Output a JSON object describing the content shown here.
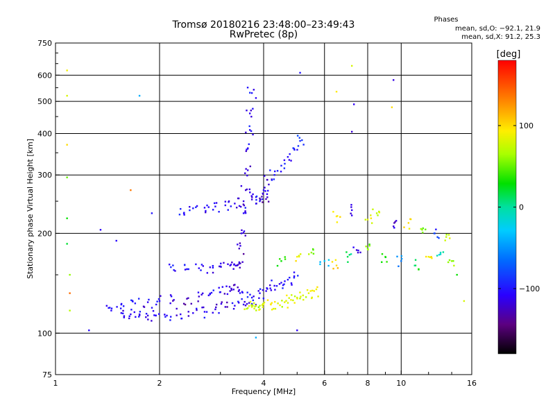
{
  "chart_data": {
    "type": "scatter",
    "title": "Tromsø 20180216 23:48:00–23:49:43",
    "subtitle": "RwPretec (8p)",
    "xlabel": "Frequency [MHz]",
    "ylabel": "Stationary phase Virtual Height [km]",
    "x_scale": "log",
    "y_scale": "log",
    "xlim": [
      1,
      16
    ],
    "ylim": [
      75,
      750
    ],
    "x_ticks": [
      1,
      2,
      4,
      6,
      8,
      10,
      16
    ],
    "y_ticks": [
      75,
      100,
      200,
      300,
      400,
      500,
      600,
      750
    ],
    "x_grid": [
      2,
      4,
      6,
      8,
      10
    ],
    "y_grid": [
      100,
      200,
      300,
      400,
      500,
      600
    ],
    "grid": true,
    "legend": {
      "heading": "Phases",
      "line1": "mean, sd,O:  −92.1, 21.9",
      "line2": "mean, sd,X:  91.2, 25.3",
      "placement": "top-right"
    },
    "colorbar": {
      "label": "[deg]",
      "range": [
        -180,
        180
      ],
      "ticks": [
        {
          "value": 100,
          "label": "100"
        },
        {
          "value": 0,
          "label": "0"
        },
        {
          "value": -100,
          "label": "−100"
        }
      ]
    },
    "point_color": "phase_deg",
    "series": [
      {
        "x": [
          1.45,
          1.55,
          1.65,
          1.75,
          1.85,
          1.95,
          2.1,
          2.3,
          2.5,
          2.7,
          2.9,
          3.1,
          3.3,
          3.5,
          3.7
        ],
        "y": [
          117,
          115,
          114,
          114,
          113,
          113,
          113,
          114,
          115,
          116,
          118,
          120,
          121,
          122,
          122
        ],
        "c": [
          -105,
          -110,
          -112,
          -108,
          -115,
          -110,
          -106,
          -112,
          -110,
          -108,
          -114,
          -118,
          -110,
          -112,
          -105
        ]
      },
      {
        "x": [
          1.55,
          1.7,
          1.85,
          2.0,
          2.2,
          2.4,
          2.6,
          2.8,
          3.0,
          3.2,
          3.4
        ],
        "y": [
          122,
          123,
          124,
          125,
          126,
          127,
          129,
          131,
          133,
          134,
          135
        ],
        "c": [
          -105,
          -100,
          -110,
          -108,
          -115,
          -125,
          -120,
          -110,
          -115,
          -118,
          -112
        ]
      },
      {
        "x": [
          2.3,
          2.5,
          2.7,
          2.9,
          3.1,
          3.3,
          3.5,
          3.7,
          3.9,
          4.1
        ],
        "y": [
          237,
          238,
          239,
          241,
          243,
          246,
          250,
          253,
          255,
          257
        ],
        "c": [
          -95,
          -100,
          -108,
          -105,
          -110,
          -112,
          -115,
          -118,
          -125,
          -120
        ]
      },
      {
        "x": [
          2.2,
          2.4,
          2.6,
          2.8,
          3.0,
          3.2,
          3.4
        ],
        "y": [
          155,
          156,
          157,
          158,
          159,
          160,
          162
        ],
        "c": [
          -100,
          -105,
          -108,
          -112,
          -110,
          -115,
          -118
        ]
      },
      {
        "x": [
          3.3,
          3.35,
          3.4,
          3.45,
          3.5,
          3.55,
          3.6,
          3.6,
          3.65,
          3.65,
          3.7
        ],
        "y": [
          140,
          160,
          180,
          200,
          230,
          270,
          310,
          360,
          410,
          460,
          530
        ],
        "c": [
          -120,
          -115,
          -125,
          -110,
          -105,
          -120,
          -115,
          -110,
          -105,
          -110,
          -100
        ]
      },
      {
        "x": [
          3.9,
          4.0,
          4.1,
          4.3,
          4.5,
          4.7,
          4.9,
          5.1
        ],
        "y": [
          250,
          270,
          290,
          300,
          320,
          340,
          360,
          380
        ],
        "c": [
          -100,
          -105,
          -110,
          -100,
          -95,
          -105,
          -100,
          -90
        ]
      },
      {
        "x": [
          3.7,
          3.9,
          4.1,
          4.3,
          4.5,
          4.7,
          4.9
        ],
        "y": [
          128,
          132,
          136,
          139,
          142,
          145,
          147
        ],
        "c": [
          -100,
          -105,
          -108,
          -110,
          -105,
          -100,
          -95
        ]
      },
      {
        "x": [
          3.6,
          3.7,
          3.8,
          3.9,
          4.0,
          4.2,
          4.4,
          4.6,
          4.8,
          5.0,
          5.2,
          5.4,
          5.6
        ],
        "y": [
          119,
          120,
          121,
          121,
          122,
          122,
          123,
          124,
          126,
          128,
          130,
          132,
          134
        ],
        "c": [
          75,
          80,
          85,
          70,
          90,
          95,
          80,
          85,
          90,
          75,
          80,
          85,
          95
        ]
      },
      {
        "x": [
          4.5,
          5.0,
          5.5,
          6.0,
          6.5,
          7.0,
          7.5,
          8.0,
          9.0,
          10.0,
          11.0,
          12.0,
          13.0,
          14.0
        ],
        "y": [
          165,
          170,
          175,
          165,
          160,
          170,
          175,
          180,
          170,
          165,
          160,
          170,
          175,
          165
        ],
        "c": [
          30,
          90,
          60,
          -30,
          100,
          15,
          -120,
          50,
          40,
          -60,
          20,
          90,
          -10,
          60
        ]
      },
      {
        "x": [
          6.5,
          7.2,
          8.0,
          8.5,
          9.5,
          10.5,
          11.5,
          12.5,
          13.5
        ],
        "y": [
          225,
          235,
          220,
          230,
          210,
          215,
          205,
          200,
          195
        ],
        "c": [
          95,
          -110,
          85,
          70,
          -120,
          100,
          60,
          -90,
          75
        ]
      }
    ],
    "sparse_points": [
      {
        "x": 1.08,
        "y": 620,
        "c": 90
      },
      {
        "x": 1.08,
        "y": 520,
        "c": 80
      },
      {
        "x": 1.08,
        "y": 370,
        "c": 100
      },
      {
        "x": 1.08,
        "y": 295,
        "c": 50
      },
      {
        "x": 1.08,
        "y": 222,
        "c": 30
      },
      {
        "x": 1.08,
        "y": 186,
        "c": 20
      },
      {
        "x": 1.1,
        "y": 150,
        "c": 60
      },
      {
        "x": 1.1,
        "y": 132,
        "c": 140
      },
      {
        "x": 1.1,
        "y": 117,
        "c": 70
      },
      {
        "x": 1.25,
        "y": 102,
        "c": -105
      },
      {
        "x": 1.35,
        "y": 205,
        "c": -110
      },
      {
        "x": 1.5,
        "y": 190,
        "c": -105
      },
      {
        "x": 1.65,
        "y": 270,
        "c": 135
      },
      {
        "x": 1.75,
        "y": 520,
        "c": -40
      },
      {
        "x": 1.9,
        "y": 230,
        "c": -100
      },
      {
        "x": 5.1,
        "y": 610,
        "c": -100
      },
      {
        "x": 6.5,
        "y": 535,
        "c": 95
      },
      {
        "x": 7.2,
        "y": 640,
        "c": 80
      },
      {
        "x": 7.3,
        "y": 490,
        "c": -110
      },
      {
        "x": 7.2,
        "y": 405,
        "c": -120
      },
      {
        "x": 9.5,
        "y": 580,
        "c": -115
      },
      {
        "x": 9.4,
        "y": 480,
        "c": 100
      },
      {
        "x": 14.5,
        "y": 150,
        "c": 30
      },
      {
        "x": 15.2,
        "y": 125,
        "c": 80
      },
      {
        "x": 3.8,
        "y": 97,
        "c": -40
      },
      {
        "x": 5.0,
        "y": 102,
        "c": -110
      }
    ]
  }
}
